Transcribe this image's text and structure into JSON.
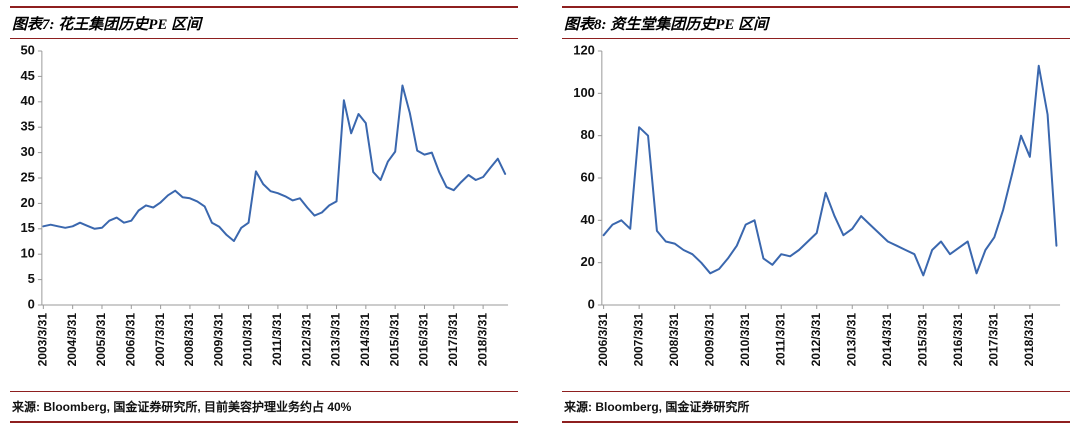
{
  "colors": {
    "accent": "#8E1F1F",
    "line": "#3A67AE",
    "axis": "#9a9a9a"
  },
  "chart_data": [
    {
      "type": "line",
      "title": "图表7: 花王集团历史PE 区间",
      "source": "来源: Bloomberg, 国金证券研究所, 目前美容护理业务约占 40%",
      "line_color": "#3A67AE",
      "ylim": [
        0,
        50
      ],
      "yticks": [
        0,
        5,
        10,
        15,
        20,
        25,
        30,
        35,
        40,
        45,
        50
      ],
      "xlim": [
        2003.2,
        2019.1
      ],
      "xtick_values": [
        2003.25,
        2004.25,
        2005.25,
        2006.25,
        2007.25,
        2008.25,
        2009.25,
        2010.25,
        2011.25,
        2012.25,
        2013.25,
        2014.25,
        2015.25,
        2016.25,
        2017.25,
        2018.25
      ],
      "xtick_labels": [
        "2003/3/31",
        "2004/3/31",
        "2005/3/31",
        "2006/3/31",
        "2007/3/31",
        "2008/3/31",
        "2009/3/31",
        "2010/3/31",
        "2011/3/31",
        "2012/3/31",
        "2013/3/31",
        "2014/3/31",
        "2015/3/31",
        "2016/3/31",
        "2017/3/31",
        "2018/3/31"
      ],
      "legend": "none",
      "grid": "off",
      "series": [
        {
          "name": "花王集团PE",
          "x_start": 2003.25,
          "x_step": 0.25,
          "values": [
            15.5,
            15.8,
            15.5,
            15.2,
            15.5,
            16.2,
            15.6,
            15.0,
            15.2,
            16.6,
            17.2,
            16.2,
            16.6,
            18.6,
            19.6,
            19.2,
            20.2,
            21.6,
            22.5,
            21.2,
            21.0,
            20.4,
            19.4,
            16.2,
            15.4,
            13.8,
            12.6,
            15.2,
            16.2,
            26.3,
            23.8,
            22.4,
            22.0,
            21.4,
            20.6,
            21.0,
            19.2,
            17.6,
            18.2,
            19.6,
            20.4,
            40.3,
            33.8,
            37.6,
            35.8,
            26.2,
            24.6,
            28.2,
            30.2,
            43.2,
            37.8,
            30.4,
            29.6,
            30.0,
            26.2,
            23.2,
            22.6,
            24.2,
            25.6,
            24.6,
            25.2,
            27.0,
            28.8,
            25.8
          ]
        }
      ]
    },
    {
      "type": "line",
      "title": "图表8: 资生堂集团历史PE 区间",
      "source": "来源: Bloomberg, 国金证券研究所",
      "line_color": "#3A67AE",
      "ylim": [
        0,
        120
      ],
      "yticks": [
        0,
        20,
        40,
        60,
        80,
        100,
        120
      ],
      "xlim": [
        2006.2,
        2019.1
      ],
      "xtick_values": [
        2006.25,
        2007.25,
        2008.25,
        2009.25,
        2010.25,
        2011.25,
        2012.25,
        2013.25,
        2014.25,
        2015.25,
        2016.25,
        2017.25,
        2018.25
      ],
      "xtick_labels": [
        "2006/3/31",
        "2007/3/31",
        "2008/3/31",
        "2009/3/31",
        "2010/3/31",
        "2011/3/31",
        "2012/3/31",
        "2013/3/31",
        "2014/3/31",
        "2015/3/31",
        "2016/3/31",
        "2017/3/31",
        "2018/3/31"
      ],
      "legend": "none",
      "grid": "off",
      "series": [
        {
          "name": "资生堂集团PE",
          "x_start": 2006.25,
          "x_step": 0.25,
          "values": [
            33,
            38,
            40,
            36,
            84,
            80,
            35,
            30,
            29,
            26,
            24,
            20,
            15,
            17,
            22,
            28,
            38,
            40,
            22,
            19,
            24,
            23,
            26,
            30,
            34,
            53,
            42,
            33,
            36,
            42,
            38,
            34,
            30,
            28,
            26,
            24,
            14,
            26,
            30,
            24,
            27,
            30,
            15,
            26,
            32,
            45,
            62,
            80,
            70,
            113,
            90,
            28
          ]
        }
      ]
    }
  ]
}
